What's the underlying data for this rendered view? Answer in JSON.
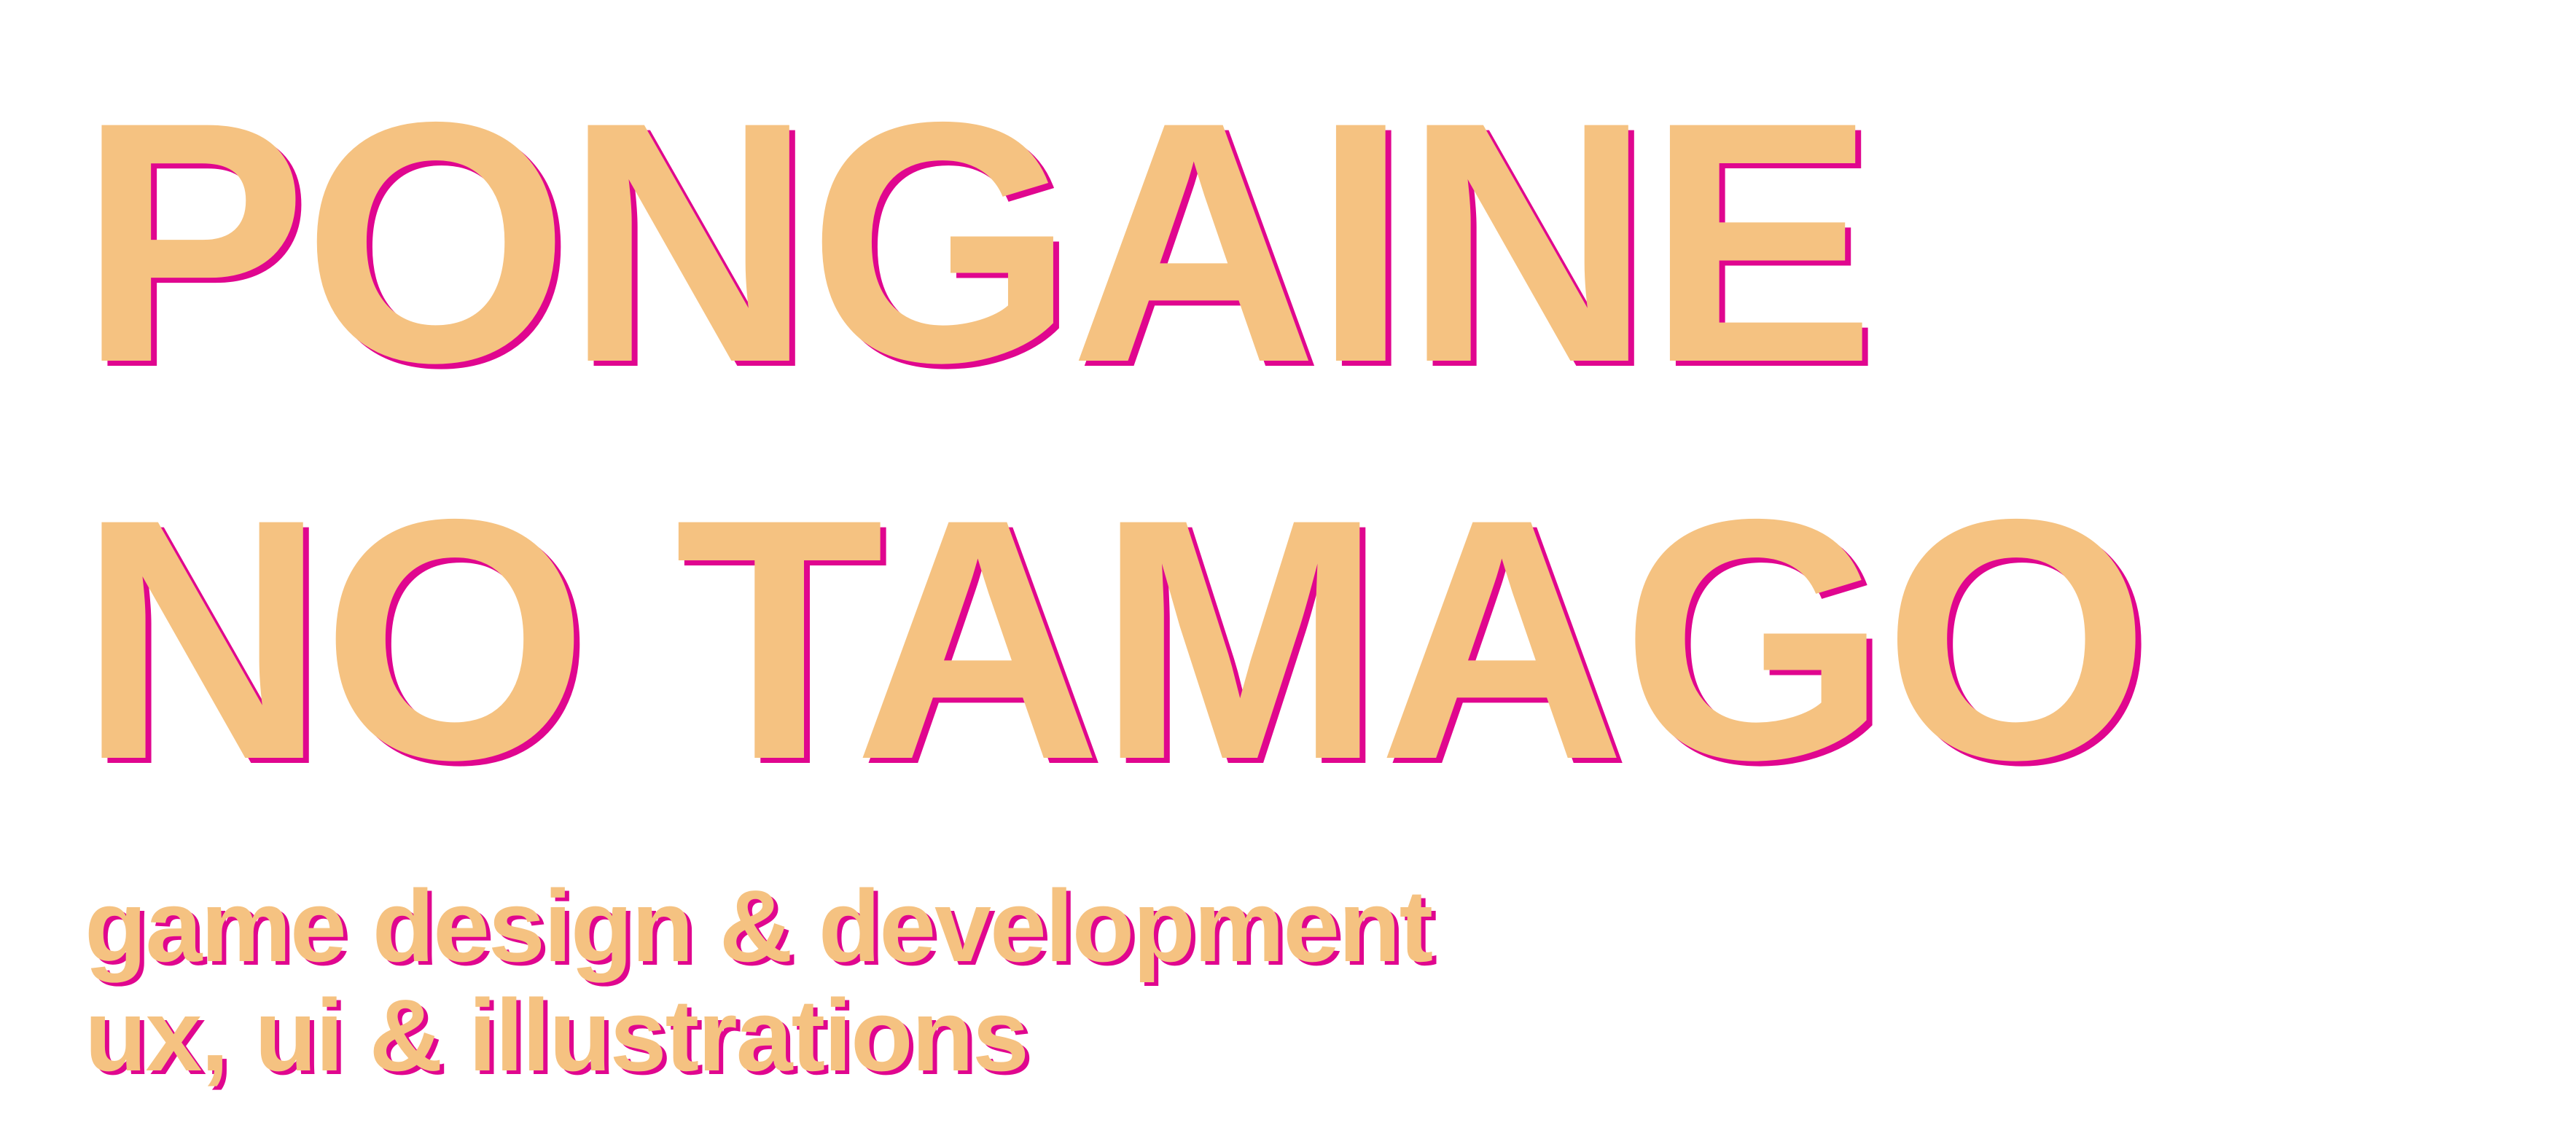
{
  "title": {
    "line1": "PONGAINE",
    "line2": "NO TAMAGO"
  },
  "tagline": {
    "line1": "game design & development",
    "line2": "ux, ui & illustrations"
  },
  "colors": {
    "background": "#ffffff",
    "text_fill": "#f5c281",
    "text_shadow": "#e0068f"
  }
}
